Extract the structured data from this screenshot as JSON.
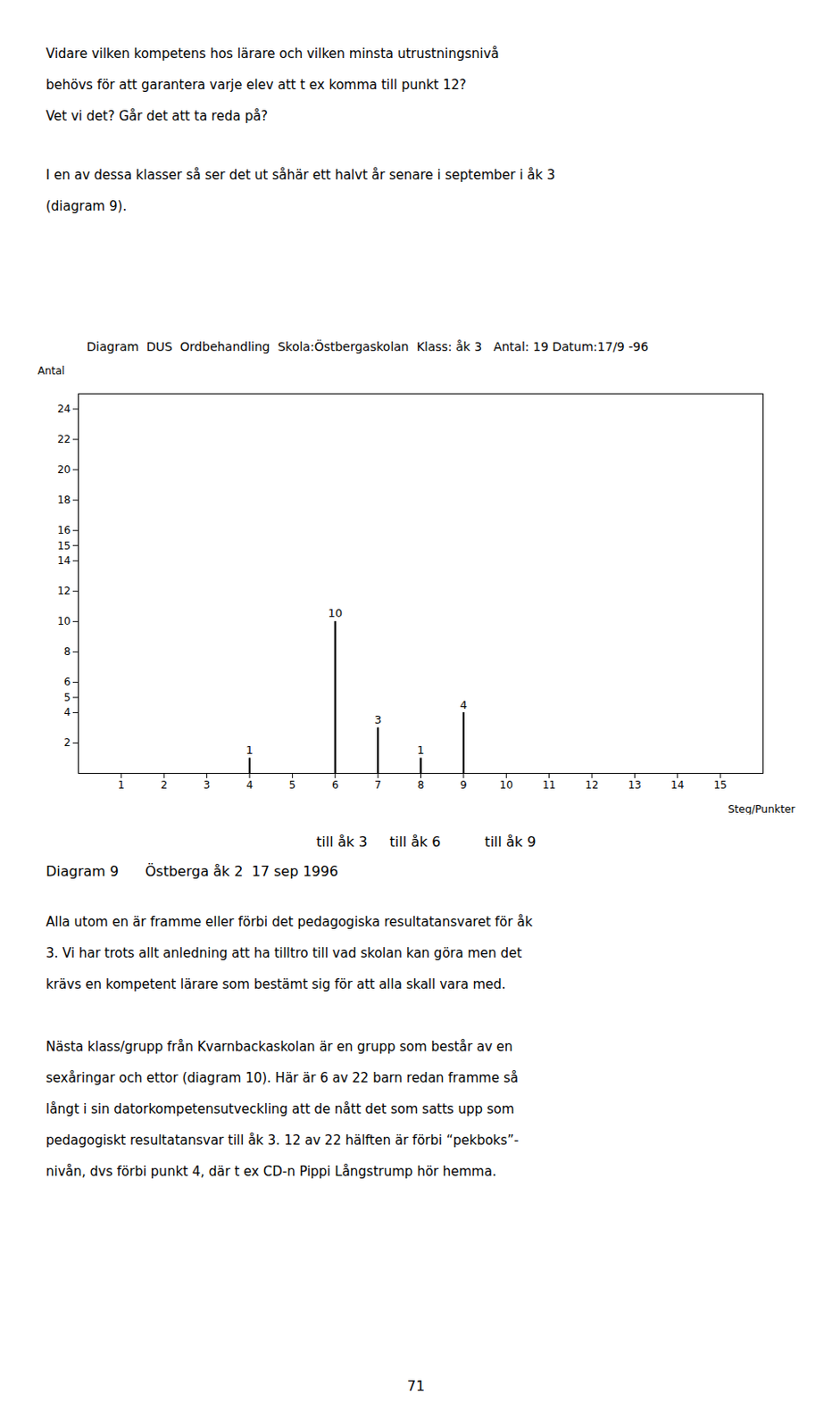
{
  "page_text_top": [
    "Vidare vilken kompetens hos lärare och vilken minsta utrustningsnivå",
    "behövs för att garantera varje elev att t ex komma till punkt 12?",
    "Vet vi det? Går det att ta reda på?"
  ],
  "page_text_mid": [
    "I en av dessa klasser så ser det ut såhär ett halvt år senare i september i åk 3",
    "(diagram 9)."
  ],
  "chart_data": {
    "type": "bar",
    "title": "Diagram  DUS  Ordbehandling  Skola:Östbergaskolan  Klass: åk 3   Antal: 19 Datum:17/9 -96",
    "ylabel": "Antal",
    "xlabel": "Steg/Punkter",
    "x": [
      4,
      6,
      7,
      8,
      9
    ],
    "values": [
      1,
      10,
      3,
      1,
      4
    ],
    "data_labels": true,
    "color": "#000000",
    "xlim": [
      0,
      16
    ],
    "xticks": [
      1,
      2,
      3,
      4,
      5,
      6,
      7,
      8,
      9,
      10,
      11,
      12,
      13,
      14,
      15
    ],
    "ylim": [
      0,
      25
    ],
    "yticks": [
      2,
      4,
      5,
      6,
      8,
      10,
      12,
      14,
      15,
      16,
      18,
      20,
      22,
      24
    ],
    "grid": false,
    "annotations": [
      "till åk 3     till åk 6          till åk 9",
      "Diagram 9      Östberga åk 2  17 sep 1996"
    ]
  },
  "page_text_bottom": [
    [
      "Alla utom en är framme eller förbi det pedagogiska resultatansvaret för åk",
      "3. Vi har trots allt anledning att ha tilltro till vad skolan kan göra men det",
      "krävs en kompetent lärare som bestämt sig för att alla skall vara med."
    ],
    [
      "Nästa klass/grupp från Kvarnbackaskolan är en grupp som består av en",
      "sexåringar och ettor (diagram 10). Här är 6 av 22 barn redan framme så",
      "långt i sin datorkompetensutveckling att de nått det som satts upp som",
      "pedagogiskt resultatansvar till åk 3. 12 av 22 hälften är förbi “pekboks”-",
      "nivån, dvs förbi punkt 4, där t ex CD-n Pippi Långstrump hör hemma."
    ]
  ],
  "page_number": "71"
}
